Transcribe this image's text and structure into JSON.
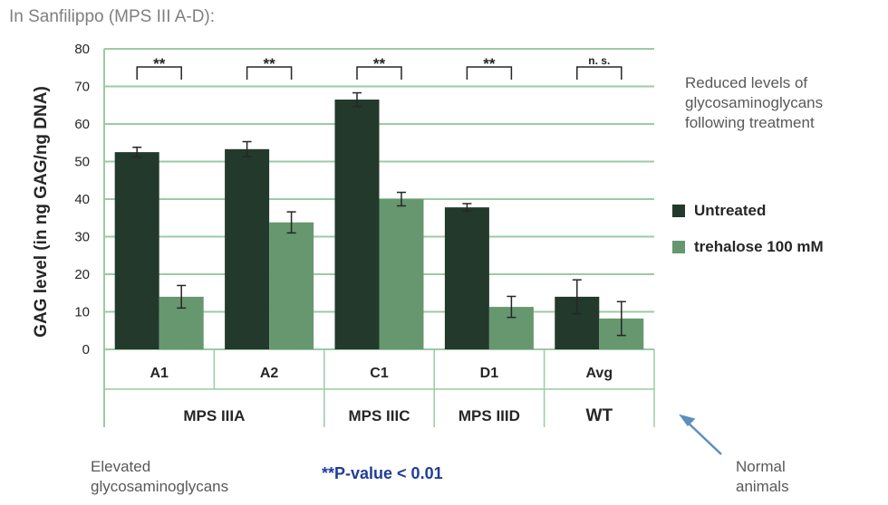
{
  "header": {
    "title": "In Sanfilippo (MPS III A-D):"
  },
  "notes": {
    "right": [
      "Reduced levels of",
      "glycosaminoglycans",
      "following treatment"
    ],
    "bottom_left": [
      "Elevated",
      "glycosaminoglycans"
    ],
    "bottom_right": [
      "Normal",
      "animals"
    ],
    "pvalue": "**P-value < 0.01"
  },
  "colors": {
    "untreated": "#22392c",
    "trehalose": "#66976f",
    "grid": "#9ccaa5",
    "arrow": "#5b8fbf"
  },
  "chart_data": {
    "type": "bar",
    "title": "",
    "ylabel": "GAG level (in ng GAG/ng DNA)",
    "xlabel": "",
    "ylim": [
      0,
      80
    ],
    "yticks": [
      0,
      10,
      20,
      30,
      40,
      50,
      60,
      70,
      80
    ],
    "grid": true,
    "legend_position": "right",
    "categories": [
      "A1",
      "A2",
      "C1",
      "D1",
      "Avg"
    ],
    "groups": [
      {
        "label": "MPS IIIA",
        "categories": [
          "A1",
          "A2"
        ]
      },
      {
        "label": "MPS IIIC",
        "categories": [
          "C1"
        ]
      },
      {
        "label": "MPS IIID",
        "categories": [
          "D1"
        ]
      },
      {
        "label": "WT",
        "categories": [
          "Avg"
        ]
      }
    ],
    "series": [
      {
        "name": "Untreated",
        "values": [
          52.5,
          53.3,
          66.5,
          37.8,
          14.0
        ],
        "errors": [
          1.3,
          2.0,
          1.8,
          1.0,
          4.5
        ]
      },
      {
        "name": "trehalose 100 mM",
        "values": [
          14.0,
          33.8,
          40.0,
          11.3,
          8.2
        ],
        "errors": [
          3.0,
          2.8,
          1.8,
          2.8,
          4.5
        ]
      }
    ],
    "significance": [
      "**",
      "**",
      "**",
      "**",
      "n. s."
    ]
  }
}
